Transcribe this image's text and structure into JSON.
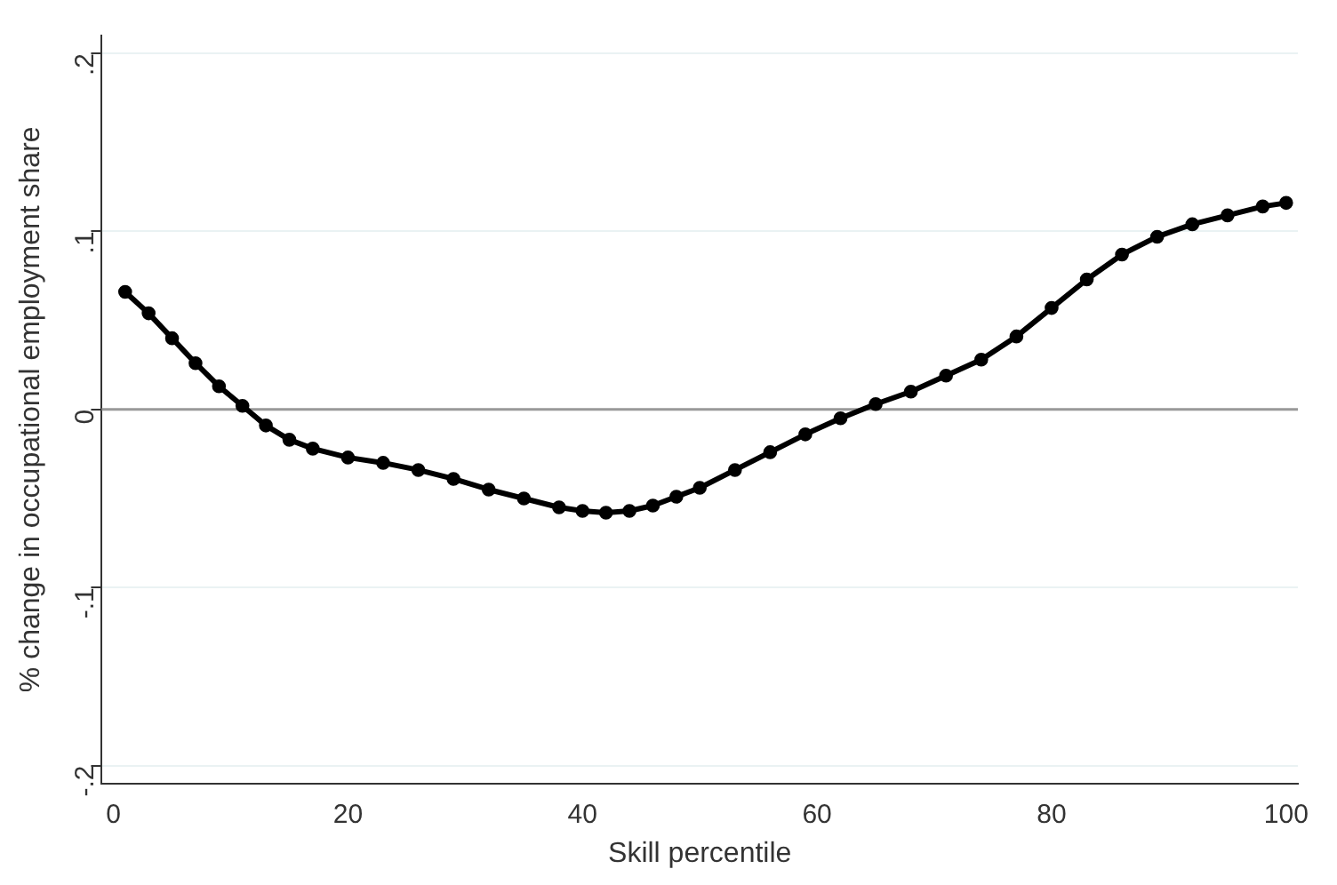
{
  "chart_data": {
    "type": "line",
    "xlabel": "Skill percentile",
    "ylabel": "% change in occupational employment share",
    "x": [
      1,
      3,
      5,
      7,
      9,
      11,
      13,
      15,
      17,
      20,
      23,
      26,
      29,
      32,
      35,
      38,
      40,
      42,
      44,
      46,
      48,
      50,
      53,
      56,
      59,
      62,
      65,
      68,
      71,
      74,
      77,
      80,
      83,
      86,
      89,
      92,
      95,
      98,
      100
    ],
    "series": [
      {
        "color": "#000000",
        "values": [
          0.066,
          0.054,
          0.04,
          0.026,
          0.013,
          0.002,
          -0.009,
          -0.017,
          -0.022,
          -0.027,
          -0.03,
          -0.034,
          -0.039,
          -0.045,
          -0.05,
          -0.055,
          -0.057,
          -0.058,
          -0.057,
          -0.054,
          -0.049,
          -0.044,
          -0.034,
          -0.024,
          -0.014,
          -0.005,
          0.003,
          0.01,
          0.019,
          0.028,
          0.041,
          0.057,
          0.073,
          0.087,
          0.097,
          0.104,
          0.109,
          0.114,
          0.116
        ]
      }
    ],
    "xlim": [
      -1,
      101
    ],
    "xticks": [
      0,
      20,
      40,
      60,
      80,
      100
    ],
    "ylim": [
      -0.21,
      0.21
    ],
    "yticks": [
      {
        "value": -0.2,
        "label": "-.2"
      },
      {
        "value": -0.1,
        "label": "-.1"
      },
      0,
      {
        "value": 0.1,
        "label": ".1"
      },
      {
        "value": 0.2,
        "label": ".2"
      }
    ],
    "grid": "y",
    "legend": false,
    "marker": "circle",
    "line_style": "solid",
    "ref_lines": [
      {
        "axis": "y",
        "value": 0,
        "color": "#999999"
      }
    ]
  }
}
